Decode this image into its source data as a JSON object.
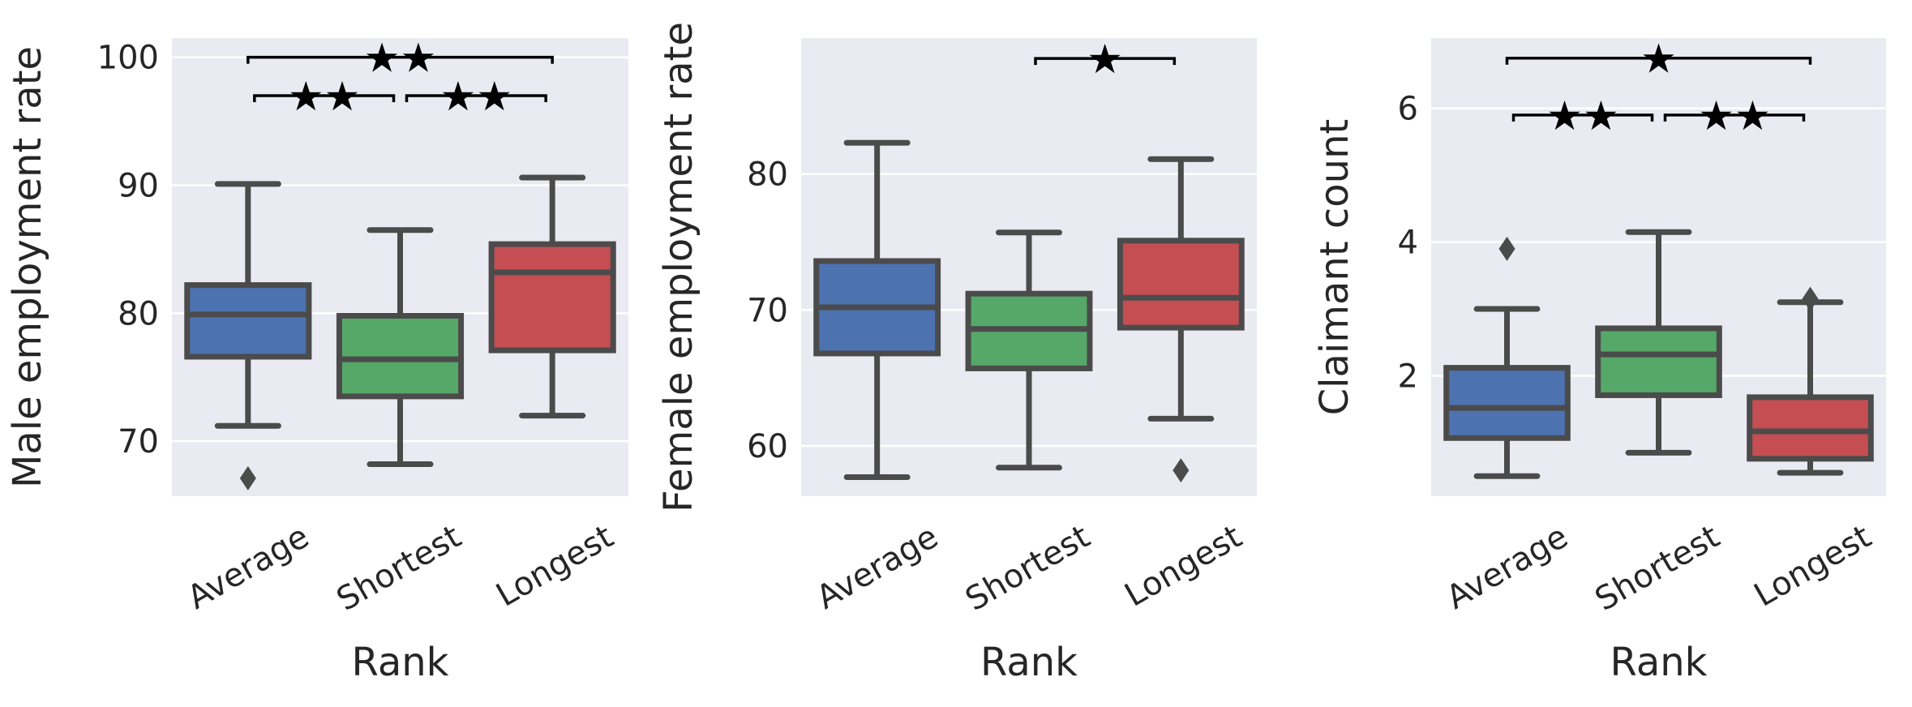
{
  "chart_data": [
    {
      "type": "box",
      "xlabel": "Rank",
      "ylabel": "Male employment rate",
      "categories": [
        "Average",
        "Shortest",
        "Longest"
      ],
      "ylim": [
        65.7,
        101.5
      ],
      "yticks": [
        70,
        80,
        90,
        100
      ],
      "boxes": [
        {
          "category": "Average",
          "whisker_low": 71.2,
          "q1": 76.6,
          "median": 79.9,
          "q3": 82.2,
          "whisker_high": 90.1,
          "outliers": [
            67.1
          ]
        },
        {
          "category": "Shortest",
          "whisker_low": 68.2,
          "q1": 73.5,
          "median": 76.4,
          "q3": 79.8,
          "whisker_high": 86.5,
          "outliers": []
        },
        {
          "category": "Longest",
          "whisker_low": 72.0,
          "q1": 77.1,
          "median": 83.2,
          "q3": 85.4,
          "whisker_high": 90.6,
          "outliers": []
        }
      ],
      "significance": [
        {
          "from": "Average",
          "to": "Longest",
          "y": 100.0,
          "label": "★★"
        },
        {
          "from": "Average",
          "to": "Shortest",
          "y": 97.0,
          "label": "★★"
        },
        {
          "from": "Shortest",
          "to": "Longest",
          "y": 97.0,
          "label": "★★"
        }
      ]
    },
    {
      "type": "box",
      "xlabel": "Rank",
      "ylabel": "Female employment rate",
      "categories": [
        "Average",
        "Shortest",
        "Longest"
      ],
      "ylim": [
        56.3,
        90.0
      ],
      "yticks": [
        60,
        70,
        80
      ],
      "boxes": [
        {
          "category": "Average",
          "whisker_low": 57.7,
          "q1": 66.8,
          "median": 70.2,
          "q3": 73.6,
          "whisker_high": 82.3,
          "outliers": []
        },
        {
          "category": "Shortest",
          "whisker_low": 58.4,
          "q1": 65.7,
          "median": 68.6,
          "q3": 71.2,
          "whisker_high": 75.7,
          "outliers": []
        },
        {
          "category": "Longest",
          "whisker_low": 62.0,
          "q1": 68.7,
          "median": 70.9,
          "q3": 75.1,
          "whisker_high": 81.1,
          "outliers": [
            58.2
          ]
        }
      ],
      "significance": [
        {
          "from": "Shortest",
          "to": "Longest",
          "y": 88.5,
          "label": "★"
        }
      ]
    },
    {
      "type": "box",
      "xlabel": "Rank",
      "ylabel": "Claimant count",
      "categories": [
        "Average",
        "Shortest",
        "Longest"
      ],
      "ylim": [
        0.2,
        7.05
      ],
      "yticks": [
        2,
        4,
        6
      ],
      "boxes": [
        {
          "category": "Average",
          "whisker_low": 0.5,
          "q1": 1.07,
          "median": 1.52,
          "q3": 2.12,
          "whisker_high": 3.0,
          "outliers": [
            3.9
          ]
        },
        {
          "category": "Shortest",
          "whisker_low": 0.85,
          "q1": 1.71,
          "median": 2.32,
          "q3": 2.71,
          "whisker_high": 4.15,
          "outliers": []
        },
        {
          "category": "Longest",
          "whisker_low": 0.55,
          "q1": 0.76,
          "median": 1.17,
          "q3": 1.68,
          "whisker_high": 3.1,
          "outliers": [
            3.15
          ]
        }
      ],
      "significance": [
        {
          "from": "Average",
          "to": "Longest",
          "y": 6.75,
          "label": "★"
        },
        {
          "from": "Average",
          "to": "Shortest",
          "y": 5.9,
          "label": "★★"
        },
        {
          "from": "Shortest",
          "to": "Longest",
          "y": 5.9,
          "label": "★★"
        }
      ]
    }
  ],
  "colors": {
    "Average": "#4c72b0",
    "Shortest": "#55a868",
    "Longest": "#c44e52",
    "axes_bg": "#eaeaf2",
    "grid": "#ffffff",
    "box_edge": "#4b4b4b",
    "text": "#262626",
    "annotation": "#000000"
  }
}
